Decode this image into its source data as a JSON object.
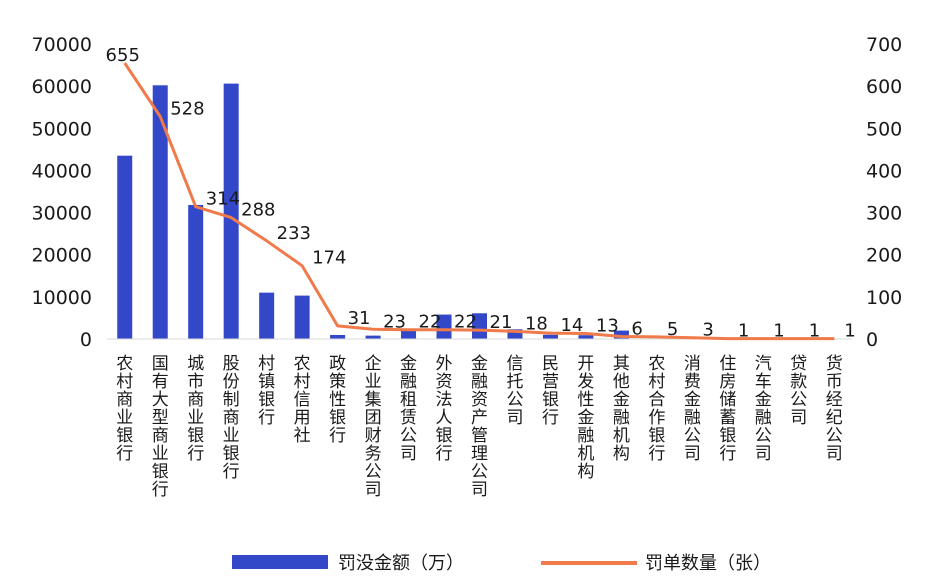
{
  "chart_data": {
    "type": "bar+line",
    "title": "",
    "categories": [
      "农村商业银行",
      "国有大型商业银行",
      "城市商业银行",
      "股份制商业银行",
      "村镇银行",
      "农村信用社",
      "政策性银行",
      "企业集团财务公司",
      "金融租赁公司",
      "外资法人银行",
      "金融资产管理公司",
      "信托公司",
      "民营银行",
      "开发性金融机构",
      "其他金融机构",
      "农村合作银行",
      "消费金融公司",
      "住房储蓄银行",
      "汽车金融公司",
      "贷款公司",
      "货币经纪公司"
    ],
    "series": [
      {
        "name": "罚没金额（万）",
        "type": "bar",
        "axis": "left",
        "color": "#3347c9",
        "values": [
          43500,
          60200,
          31800,
          60600,
          11000,
          10300,
          950,
          800,
          2200,
          5800,
          6100,
          2300,
          1000,
          900,
          2000,
          0,
          0,
          0,
          0,
          0,
          0
        ]
      },
      {
        "name": "罚单数量（张）",
        "type": "line",
        "axis": "right",
        "color": "#f07a4a",
        "values": [
          655,
          528,
          314,
          288,
          233,
          174,
          31,
          23,
          22,
          22,
          21,
          18,
          14,
          13,
          6,
          5,
          3,
          1,
          1,
          1,
          1
        ]
      }
    ],
    "data_labels": [
      "655",
      "528",
      "314",
      "288",
      "233",
      "174",
      "31",
      "23",
      "22",
      "22",
      "21",
      "18",
      "14",
      "13",
      "6",
      "5",
      "3",
      "1",
      "1",
      "1",
      "1"
    ],
    "y_left": {
      "ylim": [
        0,
        70000
      ],
      "ticks": [
        "0",
        "10000",
        "20000",
        "30000",
        "40000",
        "50000",
        "60000",
        "70000"
      ]
    },
    "y_right": {
      "ylim": [
        0,
        700
      ],
      "ticks": [
        "0",
        "100",
        "200",
        "300",
        "400",
        "500",
        "600",
        "700"
      ]
    },
    "grid": false,
    "legend": "bottom-center",
    "legend_labels": [
      "罚没金额（万）",
      "罚单数量（张）"
    ]
  }
}
